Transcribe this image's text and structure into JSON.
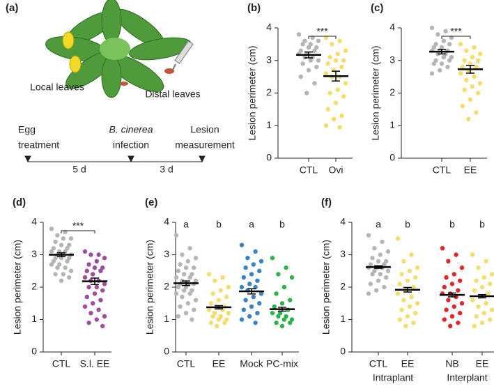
{
  "diagram": {
    "panel": "(a)",
    "local": "Local leaves",
    "distal": "Distal leaves",
    "steps": [
      [
        "Egg",
        "treatment"
      ],
      [
        "B. cinerea",
        "infection"
      ],
      [
        "Lesion",
        "measurement"
      ]
    ],
    "durations": [
      "5 d",
      "3 d"
    ]
  },
  "chart_data": [
    {
      "type": "dot",
      "panel": "(b)",
      "ylabel": "Lesion perimeter (cm)",
      "ylim": [
        0,
        4
      ],
      "yticks": [
        0,
        1,
        2,
        3,
        4
      ],
      "significance": "***",
      "groups": [
        {
          "name": "CTL",
          "color": "#b5b5b5",
          "values": [
            3.8,
            3.7,
            3.6,
            3.6,
            3.5,
            3.5,
            3.4,
            3.4,
            3.3,
            3.3,
            3.2,
            3.2,
            3.1,
            3.1,
            3.0,
            3.0,
            2.9,
            2.8,
            2.7,
            2.5,
            2.3,
            2.0
          ],
          "mean": 3.17,
          "sem": 0.09
        },
        {
          "name": "Ovi",
          "color": "#f4dd6a",
          "values": [
            3.7,
            3.6,
            3.5,
            3.3,
            3.2,
            3.1,
            3.0,
            3.0,
            2.9,
            2.8,
            2.7,
            2.6,
            2.5,
            2.5,
            2.3,
            2.1,
            2.0,
            1.9,
            1.7,
            1.5,
            1.3,
            1.2,
            1.0,
            0.95
          ],
          "mean": 2.52,
          "sem": 0.15
        }
      ]
    },
    {
      "type": "dot",
      "panel": "(c)",
      "ylabel": "Lesion perimeter (cm)",
      "ylim": [
        0,
        4
      ],
      "yticks": [
        0,
        1,
        2,
        3,
        4
      ],
      "significance": "***",
      "groups": [
        {
          "name": "CTL",
          "color": "#b5b5b5",
          "values": [
            4.0,
            3.9,
            3.8,
            3.7,
            3.6,
            3.5,
            3.5,
            3.4,
            3.4,
            3.3,
            3.3,
            3.3,
            3.2,
            3.2,
            3.1,
            3.1,
            3.0,
            3.0,
            2.9,
            2.9,
            2.8,
            2.7,
            2.6
          ],
          "mean": 3.27,
          "sem": 0.07
        },
        {
          "name": "EE",
          "color": "#f4dd6a",
          "values": [
            3.5,
            3.4,
            3.3,
            3.2,
            3.1,
            3.0,
            3.0,
            2.9,
            2.8,
            2.8,
            2.7,
            2.6,
            2.5,
            2.4,
            2.3,
            2.2,
            2.1,
            2.0,
            1.8,
            1.6,
            1.4,
            1.2
          ],
          "mean": 2.73,
          "sem": 0.12
        }
      ]
    },
    {
      "type": "dot",
      "panel": "(d)",
      "ylabel": "Lesion perimeter (cm)",
      "ylim": [
        0,
        4
      ],
      "yticks": [
        0,
        1,
        2,
        3,
        4
      ],
      "significance": "***",
      "groups": [
        {
          "name": "CTL",
          "color": "#b5b5b5",
          "values": [
            3.8,
            3.7,
            3.6,
            3.5,
            3.5,
            3.4,
            3.3,
            3.3,
            3.2,
            3.2,
            3.1,
            3.1,
            3.1,
            3.0,
            3.0,
            3.0,
            2.9,
            2.9,
            2.9,
            2.8,
            2.8,
            2.7,
            2.7,
            2.6,
            2.6,
            2.5,
            2.4,
            2.4,
            2.3,
            2.2
          ],
          "mean": 3.0,
          "sem": 0.06
        },
        {
          "name": "S.l. EE",
          "color": "#9b4f9e",
          "values": [
            3.1,
            3.0,
            3.0,
            2.9,
            2.8,
            2.7,
            2.6,
            2.6,
            2.5,
            2.5,
            2.4,
            2.3,
            2.2,
            2.2,
            2.1,
            2.0,
            2.0,
            1.9,
            1.8,
            1.7,
            1.6,
            1.5,
            1.4,
            1.3,
            1.2,
            1.1,
            1.0,
            0.9,
            0.8
          ],
          "mean": 2.18,
          "sem": 0.1
        }
      ]
    },
    {
      "type": "dot",
      "panel": "(e)",
      "ylabel": "Lesion perimeter (cm)",
      "ylim": [
        0,
        4
      ],
      "yticks": [
        0,
        1,
        2,
        3,
        4
      ],
      "letters": [
        "a",
        "b",
        "a",
        "b"
      ],
      "groups": [
        {
          "name": "CTL",
          "color": "#b5b5b5",
          "values": [
            3.6,
            3.2,
            3.0,
            2.9,
            2.8,
            2.7,
            2.6,
            2.6,
            2.5,
            2.4,
            2.4,
            2.3,
            2.3,
            2.2,
            2.2,
            2.1,
            2.1,
            2.1,
            2.0,
            2.0,
            1.9,
            1.9,
            1.8,
            1.8,
            1.7,
            1.6,
            1.5,
            1.4,
            1.3,
            1.2,
            1.1,
            1.0
          ],
          "mean": 2.12,
          "sem": 0.07
        },
        {
          "name": "EE",
          "color": "#f4dd6a",
          "values": [
            2.4,
            2.3,
            2.2,
            2.0,
            1.9,
            1.8,
            1.7,
            1.6,
            1.5,
            1.4,
            1.4,
            1.3,
            1.3,
            1.2,
            1.2,
            1.1,
            1.1,
            1.0,
            1.0,
            0.9,
            0.9,
            0.8
          ],
          "mean": 1.38,
          "sem": 0.05
        },
        {
          "name": "Mock",
          "color": "#3b82c4",
          "values": [
            3.3,
            3.1,
            2.9,
            2.8,
            2.7,
            2.6,
            2.5,
            2.4,
            2.3,
            2.2,
            2.1,
            2.0,
            2.0,
            1.9,
            1.8,
            1.7,
            1.6,
            1.5,
            1.4,
            1.3,
            1.2,
            1.1,
            1.0,
            0.9
          ],
          "mean": 1.87,
          "sem": 0.08
        },
        {
          "name": "PC-mix",
          "color": "#2fb24b",
          "values": [
            2.9,
            2.6,
            2.4,
            2.3,
            2.0,
            1.8,
            1.6,
            1.5,
            1.4,
            1.3,
            1.2,
            1.2,
            1.1,
            1.1,
            1.0,
            1.0,
            0.9,
            0.9,
            0.8
          ],
          "mean": 1.32,
          "sem": 0.06
        }
      ]
    },
    {
      "type": "dot",
      "panel": "(f)",
      "ylabel": "Lesion perimeter (cm)",
      "ylim": [
        0,
        4
      ],
      "yticks": [
        0,
        1,
        2,
        3,
        4
      ],
      "letters": [
        "a",
        "b",
        "b",
        "b"
      ],
      "supergroups": [
        "Intraplant",
        "Interplant"
      ],
      "groups": [
        {
          "name": "CTL",
          "color": "#b5b5b5",
          "values": [
            3.6,
            3.4,
            3.2,
            3.1,
            3.0,
            2.9,
            2.8,
            2.8,
            2.7,
            2.7,
            2.6,
            2.6,
            2.6,
            2.5,
            2.5,
            2.4,
            2.4,
            2.3,
            2.2,
            2.1,
            2.0,
            1.9,
            1.8
          ],
          "mean": 2.62,
          "sem": 0.04
        },
        {
          "name": "EE",
          "color": "#f4dd6a",
          "values": [
            3.5,
            3.0,
            2.8,
            2.6,
            2.5,
            2.4,
            2.3,
            2.2,
            2.1,
            2.0,
            1.9,
            1.8,
            1.7,
            1.6,
            1.5,
            1.4,
            1.3,
            1.2,
            1.1,
            1.0,
            0.9,
            0.8
          ],
          "mean": 1.92,
          "sem": 0.07
        },
        {
          "name": "NB",
          "color": "#e0282a",
          "values": [
            3.2,
            3.0,
            2.8,
            2.6,
            2.4,
            2.3,
            2.2,
            2.1,
            2.0,
            1.9,
            1.8,
            1.8,
            1.7,
            1.6,
            1.5,
            1.4,
            1.3,
            1.2,
            1.1,
            1.0,
            0.9,
            0.8
          ],
          "mean": 1.76,
          "sem": 0.06
        },
        {
          "name": "EE",
          "color": "#f4dd6a",
          "values": [
            3.0,
            2.8,
            2.6,
            2.4,
            2.3,
            2.2,
            2.1,
            2.0,
            1.9,
            1.8,
            1.7,
            1.6,
            1.5,
            1.4,
            1.3,
            1.2,
            1.1,
            1.0,
            0.9,
            0.8
          ],
          "mean": 1.72,
          "sem": 0.05
        }
      ]
    }
  ]
}
